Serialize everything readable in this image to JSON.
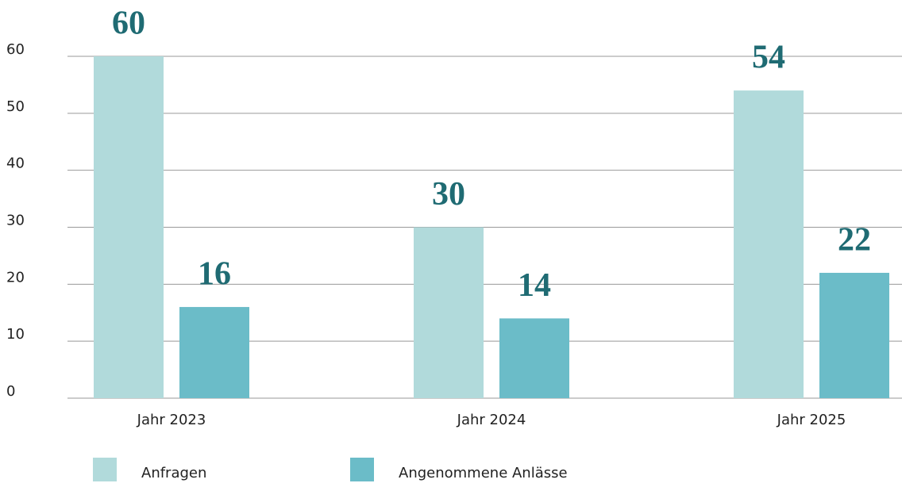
{
  "chart_data": {
    "type": "bar",
    "categories": [
      "Jahr 2023",
      "Jahr 2024",
      "Jahr 2025"
    ],
    "series": [
      {
        "name": "Anfragen",
        "color": "#b1dadb",
        "values": [
          60,
          30,
          54
        ]
      },
      {
        "name": "Angenommene Anlässe",
        "color": "#6bbcc8",
        "values": [
          16,
          14,
          22
        ]
      }
    ],
    "ylim": [
      0,
      60
    ],
    "yticks": [
      0,
      10,
      20,
      30,
      40,
      50,
      60
    ],
    "grid": true,
    "data_labels": true,
    "legend": "bottom"
  }
}
